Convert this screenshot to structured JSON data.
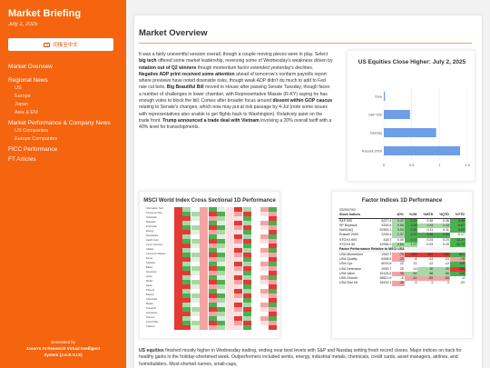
{
  "sidebar": {
    "title": "Market Briefing",
    "date": "July 2, 2025",
    "lang_button": "切換至中文",
    "nav": [
      {
        "label": "Market Overview",
        "level": 0
      },
      {
        "label": "Regional News",
        "level": 0
      },
      {
        "label": "US",
        "level": 1
      },
      {
        "label": "Europe",
        "level": 1
      },
      {
        "label": "Japan",
        "level": 1
      },
      {
        "label": "Asia & EM",
        "level": 1
      },
      {
        "label": "Market Performance & Company News",
        "level": 0
      },
      {
        "label": "US Companies",
        "level": 1
      },
      {
        "label": "Europe Companies",
        "level": 1
      },
      {
        "label": "FICC Performance",
        "level": 0
      },
      {
        "label": "FT Articles",
        "level": 0
      }
    ],
    "footer": [
      "Generated by",
      "Jason's AI Research Virtual Intelligent",
      "System (J.A.R.V.I.S)"
    ]
  },
  "main": {
    "title": "Market Overview",
    "overview_html_parts": [
      {
        "t": "It was a fairly uneventful session overall, though a couple moving pieces were in play. Select ",
        "b": false
      },
      {
        "t": "big tech",
        "b": true
      },
      {
        "t": " offered some market leadership, reversing some of Wednesday's weakness driven by ",
        "b": false
      },
      {
        "t": "rotation out of Q2 winners",
        "b": true
      },
      {
        "t": " though momentum factor extended yesterday's declines. ",
        "b": false
      },
      {
        "t": "Negative ADP print received some attention",
        "b": true
      },
      {
        "t": " ahead of tomorrow's nonfarm payrolls report where previews have noted downside risks, though weak ADP didn't do much to add to Fed rate cut bets. ",
        "b": false
      },
      {
        "t": "Big Beautiful Bill",
        "b": true
      },
      {
        "t": " moved to House after passing Senate Tuesday, though faces a number of challenges in lower chamber, with Representative Massie (R-KY) saying he has enough votes to block the bill. Comes after broader focus around ",
        "b": false
      },
      {
        "t": "dissent within GOP caucus",
        "b": true
      },
      {
        "t": " relating to Senate's changes, which now may put at risk passage by 4-Jul (note some issues with representatives also unable to get flights back to Washington). Relatively quiet on the trade front. ",
        "b": false
      },
      {
        "t": "Trump announced a trade deal with Vietnam",
        "b": true
      },
      {
        "t": " involving a 20% overall tariff with a 40% level for transshipments.",
        "b": false
      }
    ],
    "us_equities_parts": [
      {
        "t": "US equities",
        "b": true
      },
      {
        "t": " finished mostly higher in Wednesday trading, ending near best levels with S&P and Nasdaq setting fresh record closes. Major indices on track for healthy gains in the holiday-shortened week. Outperformers included semis, energy, industrial metals, chemicals, credit cards, asset managers, airlines, and homebuilders. Most-shorted names, small-caps,",
        "b": false
      }
    ]
  },
  "chart_data": {
    "type": "bar",
    "orientation": "horizontal",
    "title": "US Equities Close Higher: July 2, 2025",
    "categories": [
      "Dow",
      "S&P 500",
      "Nasdaq",
      "Russell 2000"
    ],
    "values": [
      0.02,
      0.47,
      0.94,
      1.37
    ],
    "xlim": [
      0,
      1.5
    ],
    "xticks": [
      0,
      0.5,
      1,
      1.5
    ],
    "xtick_labels": [
      "0",
      "0.5",
      "1",
      "1.5"
    ],
    "color": "#6f9ee8"
  },
  "msci": {
    "title": "MSCI World Index Cross Sectional 1D Performance",
    "rows": [
      "Information Tech",
      "Consumer Disc",
      "Industrials",
      "Materials",
      "Financials",
      "Energy",
      "Real Estate",
      "Health Care",
      "Comm Services",
      "Utilities",
      "Consumer Staples",
      "Semis",
      "Software",
      "Banks",
      "Insurance",
      "Autos",
      "Media",
      "Retail",
      "Pharma",
      "Biotech",
      "Chemicals",
      "Metals",
      "Transport",
      "Aerospace",
      "Telecom",
      "Food & Bev",
      "Tobacco"
    ]
  },
  "factor": {
    "title": "Factor Indices 1D Performance",
    "date": "2025/07/02",
    "header": [
      "Stock Indices",
      "",
      "1D%",
      "%1W",
      "%MTD",
      "%QTD",
      "%YTD"
    ],
    "stock_rows": [
      [
        "S&P 500",
        "6227.4",
        "0.47",
        "2.22",
        "0.36",
        "0.36",
        "5.88"
      ],
      [
        "SP Buyback",
        "3334.6",
        "0.66",
        "3.08",
        "1.33",
        "1.33",
        "6.87"
      ],
      [
        "NASDAQ",
        "20393.1",
        "0.94",
        "2.10",
        "0.11",
        "0.11",
        "5.65"
      ],
      [
        "Russell 2000",
        "2228.4",
        "1.37",
        "4.22",
        "2.36",
        "2.36",
        "-0.17"
      ],
      [
        "STOXX 600",
        "418.7",
        "0.00",
        "2.10",
        "0.24",
        "0.24",
        "14.27"
      ],
      [
        "STOXX 50",
        "12996.2",
        "0.69",
        "1.27",
        "0.29",
        "0.29",
        "10.72"
      ]
    ],
    "factor_section": "Factor Performance Relative to MSCI USA",
    "factor_rows": [
      [
        "USA Momentum",
        "1942.7",
        "-75",
        "-153",
        "-192",
        "-192",
        "822"
      ],
      [
        "USA Quality",
        "6268.5",
        "-33",
        "-8",
        "-23",
        "-23",
        "-78"
      ],
      [
        "USA Cyc",
        "6013.8",
        "22",
        "21",
        "-12",
        "-12",
        "116"
      ],
      [
        "USA Defensive",
        "2939.7",
        "25",
        "14",
        "30",
        "30",
        "-288"
      ],
      [
        "USA Value",
        "15126.6",
        "-30",
        "52",
        "66",
        "66",
        "128"
      ],
      [
        "USA Growth",
        "38521.9",
        "-6",
        "-41",
        "-65",
        "-65",
        "-4"
      ],
      [
        "USA Size tilt",
        "16432.1",
        "-46",
        "-5",
        "9",
        "9",
        "-23"
      ]
    ],
    "colors": {
      "pos_strong": "#4caf50",
      "pos": "#a8d8a8",
      "neg": "#f4a3a3",
      "neg_strong": "#e53935"
    }
  }
}
